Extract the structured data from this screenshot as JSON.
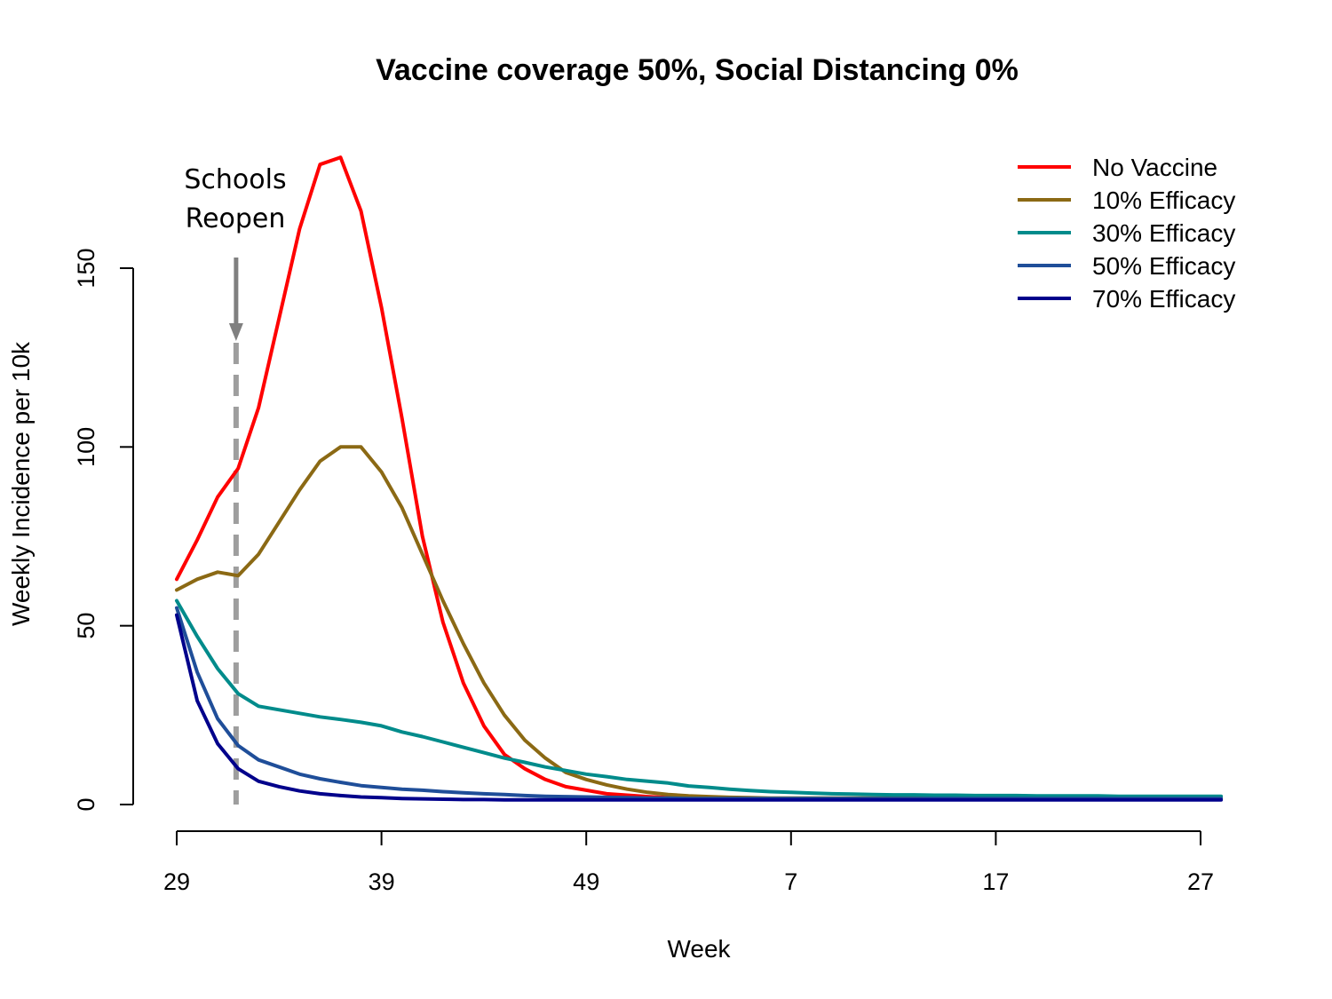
{
  "chart_data": {
    "type": "line",
    "title": "Vaccine coverage 50%, Social Distancing 0%",
    "xlabel": "Week",
    "ylabel": "Weekly Incidence per 10k",
    "x_index_range": [
      0,
      51
    ],
    "xticks": [
      {
        "index": 0,
        "label": "29"
      },
      {
        "index": 10,
        "label": "39"
      },
      {
        "index": 20,
        "label": "49"
      },
      {
        "index": 30,
        "label": "7"
      },
      {
        "index": 40,
        "label": "17"
      },
      {
        "index": 50,
        "label": "27"
      }
    ],
    "yticks": [
      0,
      50,
      100,
      150
    ],
    "ylim": [
      0,
      150
    ],
    "grid": false,
    "legend_position": "top-right",
    "annotation": {
      "lines": [
        "Schools",
        "Reopen"
      ],
      "x_index": 2.9,
      "color": "#9e9e9e"
    },
    "series": [
      {
        "name": "No Vaccine",
        "color": "#ff0000",
        "values": [
          63,
          74,
          86,
          94,
          111,
          136,
          161,
          179,
          181,
          166,
          139,
          108,
          75,
          51,
          34,
          22,
          14,
          10,
          7,
          5,
          4,
          3,
          2.6,
          2.2,
          1.9,
          1.7,
          1.6,
          1.5,
          1.5,
          1.5,
          1.5,
          1.5,
          1.5,
          1.5,
          1.5,
          1.5,
          1.5,
          1.5,
          1.5,
          1.5,
          1.5,
          1.5,
          1.5,
          1.5,
          1.5,
          1.5,
          1.5,
          1.5,
          1.5,
          1.5,
          1.5,
          1.5
        ]
      },
      {
        "name": "10% Efficacy",
        "color": "#8b6914",
        "values": [
          60,
          63,
          65,
          64,
          70,
          79,
          88,
          96,
          100,
          100,
          93,
          83,
          70,
          57,
          45,
          34,
          25,
          18,
          13,
          9,
          7,
          5.5,
          4.3,
          3.4,
          2.8,
          2.4,
          2.2,
          2.0,
          1.9,
          1.8,
          1.8,
          1.8,
          1.8,
          1.8,
          1.8,
          1.8,
          1.8,
          1.8,
          1.8,
          1.8,
          1.8,
          1.8,
          1.8,
          1.8,
          1.8,
          1.8,
          1.8,
          1.8,
          1.8,
          1.8,
          1.8,
          1.8
        ]
      },
      {
        "name": "30% Efficacy",
        "color": "#008b8b",
        "values": [
          57,
          47,
          38,
          31,
          27.5,
          26.5,
          25.5,
          24.5,
          23.8,
          23,
          22,
          20.3,
          19,
          17.5,
          16,
          14.5,
          13,
          11.8,
          10.5,
          9.5,
          8.5,
          7.8,
          7,
          6.5,
          6,
          5.2,
          4.8,
          4.3,
          3.9,
          3.6,
          3.4,
          3.2,
          3.0,
          2.9,
          2.8,
          2.7,
          2.7,
          2.6,
          2.6,
          2.5,
          2.5,
          2.5,
          2.4,
          2.4,
          2.4,
          2.4,
          2.3,
          2.3,
          2.3,
          2.3,
          2.3,
          2.3
        ]
      },
      {
        "name": "50% Efficacy",
        "color": "#1f4e99",
        "values": [
          55,
          37,
          24,
          16.5,
          12.5,
          10.5,
          8.5,
          7.2,
          6.2,
          5.3,
          4.8,
          4.3,
          4.0,
          3.6,
          3.3,
          3.0,
          2.8,
          2.5,
          2.3,
          2.2,
          2.1,
          2.0,
          1.9,
          1.8,
          1.8,
          1.7,
          1.7,
          1.7,
          1.7,
          1.7,
          1.7,
          1.7,
          1.7,
          1.7,
          1.7,
          1.7,
          1.7,
          1.7,
          1.7,
          1.7,
          1.7,
          1.7,
          1.7,
          1.7,
          1.7,
          1.7,
          1.7,
          1.7,
          1.7,
          1.7,
          1.7,
          1.7
        ]
      },
      {
        "name": "70% Efficacy",
        "color": "#00008b",
        "values": [
          53,
          29,
          17,
          10,
          6.5,
          5,
          3.8,
          3,
          2.5,
          2.1,
          1.9,
          1.7,
          1.6,
          1.5,
          1.4,
          1.4,
          1.3,
          1.3,
          1.3,
          1.3,
          1.3,
          1.3,
          1.3,
          1.3,
          1.3,
          1.3,
          1.3,
          1.3,
          1.3,
          1.3,
          1.3,
          1.3,
          1.3,
          1.3,
          1.3,
          1.3,
          1.3,
          1.3,
          1.3,
          1.3,
          1.3,
          1.3,
          1.3,
          1.3,
          1.3,
          1.3,
          1.3,
          1.3,
          1.3,
          1.3,
          1.3,
          1.3
        ]
      }
    ]
  }
}
